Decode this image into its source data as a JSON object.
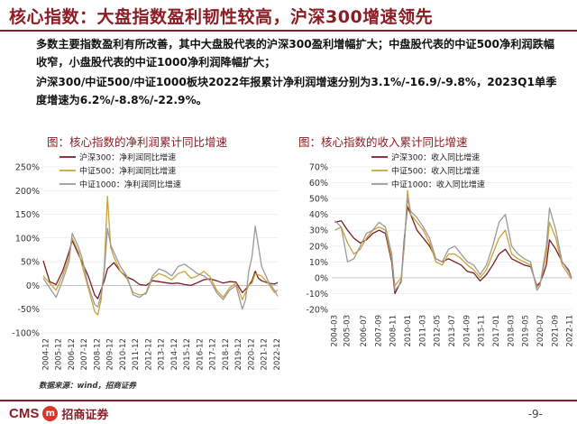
{
  "header": {
    "title": "核心指数：大盘指数盈利韧性较高，沪深300增速领先"
  },
  "bullets": [
    "多数主要指数盈利有所改善，其中大盘股代表的沪深300盈利增幅扩大；中盘股代表的中证500净利润跌幅收窄，小盘股代表的中证1000净利润降幅扩大；",
    "沪深300/中证500/中证1000板块2022年报累计净利润增速分别为3.1%/-16.9/-9.8%，2023Q1单季度增速为6.2%/-8.8%/-22.9%。"
  ],
  "colors": {
    "hs300": "#7a1b22",
    "zz500": "#c9a23a",
    "zz1000": "#9a9a9a",
    "accent": "#8b1d24"
  },
  "chart_data": [
    {
      "type": "line",
      "title": "图：核心指数的净利润累计同比增速",
      "ylim": [
        -100,
        250
      ],
      "yticks": [
        -100,
        -50,
        0,
        50,
        100,
        150,
        200,
        250
      ],
      "yticklabels": [
        "-100%",
        "-50%",
        "0%",
        "50%",
        "100%",
        "150%",
        "200%",
        "250%"
      ],
      "xrange": [
        2004.75,
        2023.0
      ],
      "xticks": [
        "2004-12",
        "2005-12",
        "2006-12",
        "2007-12",
        "2008-12",
        "2009-12",
        "2010-12",
        "2011-12",
        "2012-12",
        "2013-12",
        "2014-12",
        "2015-12",
        "2016-12",
        "2017-12",
        "2018-12",
        "2019-12",
        "2020-12",
        "2021-12",
        "2022-12"
      ],
      "series": [
        {
          "name": "沪深300：净利润同比增速",
          "color": "#7a1b22",
          "x": [
            2004.75,
            2005.25,
            2005.75,
            2006.25,
            2006.75,
            2007.0,
            2007.5,
            2007.75,
            2008.25,
            2008.75,
            2009.0,
            2009.5,
            2009.75,
            2010.25,
            2010.75,
            2011.25,
            2011.75,
            2012.25,
            2012.75,
            2013.25,
            2013.75,
            2014.25,
            2014.75,
            2015.25,
            2015.75,
            2016.25,
            2016.75,
            2017.25,
            2017.75,
            2018.25,
            2018.75,
            2019.25,
            2019.75,
            2020.25,
            2020.5,
            2020.75,
            2021.0,
            2021.25,
            2021.5,
            2021.75,
            2022.25,
            2022.75,
            2023.0
          ],
          "values": [
            52,
            8,
            2,
            30,
            70,
            95,
            65,
            50,
            20,
            -20,
            -28,
            10,
            35,
            48,
            30,
            18,
            12,
            2,
            0,
            10,
            8,
            6,
            4,
            5,
            2,
            0,
            6,
            12,
            14,
            10,
            5,
            8,
            7,
            -15,
            -8,
            0,
            10,
            30,
            15,
            10,
            5,
            3,
            6
          ]
        },
        {
          "name": "中证500：净利润同比增速",
          "color": "#c9a23a",
          "x": [
            2004.75,
            2005.25,
            2005.75,
            2006.25,
            2006.75,
            2007.0,
            2007.5,
            2007.75,
            2008.25,
            2008.75,
            2009.0,
            2009.25,
            2009.5,
            2009.75,
            2010.0,
            2010.25,
            2010.75,
            2011.25,
            2011.75,
            2012.25,
            2012.75,
            2013.25,
            2013.75,
            2014.25,
            2014.75,
            2015.25,
            2015.75,
            2016.25,
            2016.75,
            2017.25,
            2017.75,
            2018.25,
            2018.75,
            2019.25,
            2019.75,
            2020.25,
            2020.5,
            2020.75,
            2021.0,
            2021.25,
            2021.75,
            2022.25,
            2022.75,
            2023.0
          ],
          "values": [
            20,
            5,
            -10,
            20,
            60,
            100,
            70,
            45,
            -5,
            -55,
            -62,
            -30,
            40,
            188,
            80,
            60,
            30,
            15,
            -15,
            -20,
            -18,
            15,
            25,
            20,
            12,
            25,
            30,
            15,
            20,
            30,
            18,
            -10,
            -25,
            -5,
            5,
            -30,
            -15,
            0,
            5,
            25,
            20,
            5,
            -15,
            -9
          ]
        },
        {
          "name": "中证1000：净利润同比增速",
          "color": "#9a9a9a",
          "x": [
            2004.75,
            2005.25,
            2005.75,
            2006.25,
            2006.75,
            2007.0,
            2007.5,
            2007.75,
            2008.25,
            2008.75,
            2009.0,
            2009.25,
            2009.5,
            2009.75,
            2010.0,
            2010.25,
            2010.75,
            2011.25,
            2011.75,
            2012.25,
            2012.75,
            2013.25,
            2013.75,
            2014.25,
            2014.75,
            2015.25,
            2015.75,
            2016.25,
            2016.75,
            2017.25,
            2017.75,
            2018.25,
            2018.75,
            2019.25,
            2019.75,
            2020.25,
            2020.5,
            2020.75,
            2021.0,
            2021.25,
            2021.75,
            2022.25,
            2022.75,
            2023.0
          ],
          "values": [
            15,
            -5,
            -25,
            10,
            50,
            110,
            80,
            60,
            0,
            -40,
            -45,
            -20,
            30,
            120,
            85,
            70,
            40,
            20,
            -20,
            -25,
            -15,
            20,
            35,
            30,
            20,
            40,
            45,
            35,
            25,
            20,
            10,
            -15,
            -30,
            -10,
            0,
            -50,
            -30,
            30,
            60,
            125,
            40,
            10,
            -10,
            -23
          ]
        }
      ]
    },
    {
      "type": "line",
      "title": "图：核心指数的收入累计同比增速",
      "ylim": [
        -20,
        70
      ],
      "yticks": [
        -20,
        -10,
        0,
        10,
        20,
        30,
        40,
        50,
        60,
        70
      ],
      "yticklabels": [
        "-20%",
        "-10%",
        "0%",
        "10%",
        "20%",
        "30%",
        "40%",
        "50%",
        "60%",
        "70%"
      ],
      "xrange": [
        2004.0,
        2023.0
      ],
      "xticks": [
        "2004-03",
        "2005-03",
        "2006-07",
        "2007-09",
        "2008-11",
        "2010-01",
        "2011-03",
        "2012-05",
        "2013-07",
        "2014-09",
        "2015-11",
        "2017-01",
        "2018-03",
        "2019-05",
        "2020-07",
        "2021-09",
        "2022-11"
      ],
      "series": [
        {
          "name": "沪深300：收入同比增速",
          "color": "#7a1b22",
          "x": [
            2004.25,
            2004.75,
            2005.25,
            2005.75,
            2006.25,
            2006.75,
            2007.25,
            2007.75,
            2008.25,
            2008.75,
            2009.0,
            2009.5,
            2009.75,
            2010.0,
            2010.25,
            2010.75,
            2011.25,
            2011.75,
            2012.25,
            2012.75,
            2013.25,
            2013.75,
            2014.25,
            2014.75,
            2015.25,
            2015.75,
            2016.25,
            2016.75,
            2017.25,
            2017.75,
            2018.25,
            2018.75,
            2019.25,
            2019.75,
            2020.25,
            2020.5,
            2020.75,
            2021.0,
            2021.25,
            2021.75,
            2022.25,
            2022.75,
            2023.0
          ],
          "values": [
            35,
            36,
            30,
            25,
            22,
            24,
            28,
            30,
            28,
            10,
            -10,
            -2,
            25,
            45,
            40,
            30,
            25,
            20,
            12,
            10,
            12,
            10,
            8,
            4,
            3,
            -2,
            2,
            8,
            15,
            18,
            12,
            10,
            8,
            7,
            -5,
            -3,
            2,
            8,
            24,
            18,
            10,
            5,
            0
          ]
        },
        {
          "name": "中证500：收入同比增速",
          "color": "#c9a23a",
          "x": [
            2004.25,
            2004.75,
            2005.25,
            2005.75,
            2006.25,
            2006.75,
            2007.25,
            2007.75,
            2008.25,
            2008.75,
            2009.0,
            2009.5,
            2009.75,
            2010.0,
            2010.25,
            2010.75,
            2011.25,
            2011.75,
            2012.25,
            2012.75,
            2013.25,
            2013.75,
            2014.25,
            2014.75,
            2015.25,
            2015.75,
            2016.25,
            2016.75,
            2017.25,
            2017.75,
            2018.25,
            2018.75,
            2019.25,
            2019.75,
            2020.25,
            2020.5,
            2020.75,
            2021.0,
            2021.25,
            2021.75,
            2022.25,
            2022.75,
            2023.0
          ],
          "values": [
            30,
            32,
            22,
            15,
            18,
            25,
            30,
            32,
            30,
            12,
            -5,
            0,
            20,
            55,
            40,
            35,
            30,
            22,
            10,
            8,
            15,
            15,
            12,
            8,
            5,
            0,
            5,
            15,
            25,
            30,
            15,
            12,
            10,
            8,
            -6,
            -4,
            5,
            15,
            35,
            25,
            8,
            2,
            -1
          ]
        },
        {
          "name": "中证1000：收入同比增速",
          "color": "#9a9a9a",
          "x": [
            2004.25,
            2004.75,
            2005.25,
            2005.75,
            2006.25,
            2006.75,
            2007.25,
            2007.75,
            2008.25,
            2008.75,
            2009.0,
            2009.5,
            2009.75,
            2010.0,
            2010.25,
            2010.75,
            2011.25,
            2011.75,
            2012.25,
            2012.75,
            2013.25,
            2013.75,
            2014.25,
            2014.75,
            2015.25,
            2015.75,
            2016.25,
            2016.75,
            2017.25,
            2017.75,
            2018.25,
            2018.75,
            2019.25,
            2019.75,
            2020.25,
            2020.5,
            2020.75,
            2021.0,
            2021.25,
            2021.75,
            2022.25,
            2022.75,
            2023.0
          ],
          "values": [
            36,
            32,
            10,
            12,
            20,
            28,
            30,
            35,
            32,
            15,
            -8,
            -3,
            22,
            50,
            42,
            38,
            32,
            25,
            12,
            10,
            18,
            20,
            15,
            10,
            8,
            2,
            8,
            20,
            35,
            40,
            20,
            15,
            12,
            10,
            -8,
            -5,
            8,
            20,
            44,
            30,
            10,
            4,
            0
          ]
        }
      ]
    }
  ],
  "footer": {
    "source": "数据来源：wind，招商证券",
    "logo_cms": "CMS",
    "logo_badge": "m",
    "logo_cn": "招商证券",
    "page": "-9-"
  }
}
